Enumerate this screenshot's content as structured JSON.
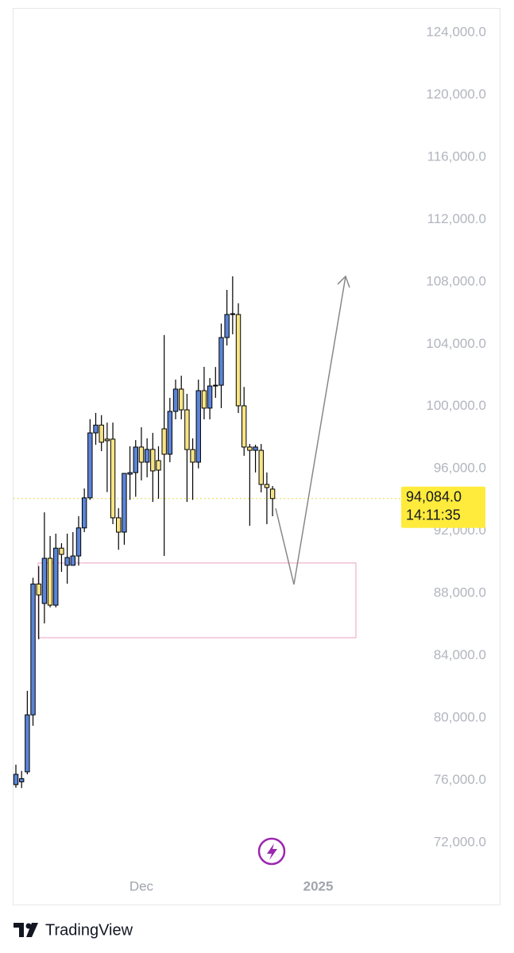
{
  "chart_data": {
    "type": "candlestick",
    "source": "TradingView",
    "categories": [
      null,
      null,
      null,
      null,
      null,
      null,
      null,
      null,
      null,
      null,
      null,
      null,
      null,
      null,
      null,
      null,
      null,
      null,
      null,
      null,
      null,
      null,
      "Dec",
      null,
      null,
      null,
      null,
      null,
      null,
      null,
      null,
      null,
      null,
      null,
      null,
      null,
      null,
      null,
      null,
      null,
      null,
      null,
      null,
      null,
      null,
      null,
      null,
      null,
      null,
      null,
      null,
      null,
      null,
      "2025"
    ],
    "open": [
      75720,
      75900,
      76540,
      80200,
      88600,
      87350,
      90250,
      87240,
      90900,
      89800,
      89800,
      90400,
      92200,
      94130,
      98300,
      98800,
      97900,
      97900,
      92850,
      91930,
      95650,
      95750,
      97390,
      96420,
      97240,
      96520,
      98560,
      96930,
      99680,
      101110,
      99780,
      97230,
      96420,
      101010,
      99890,
      101310,
      101360,
      104420,
      105900,
      105900,
      100040,
      97390,
      97180,
      97180,
      94990,
      94690,
      null,
      null,
      null,
      null,
      null,
      null,
      null,
      null
    ],
    "high": [
      77000,
      76600,
      81740,
      89000,
      89750,
      93200,
      91680,
      91830,
      91220,
      91830,
      91930,
      92950,
      94730,
      99180,
      99580,
      99440,
      98960,
      98960,
      93470,
      95390,
      97440,
      97840,
      98660,
      97950,
      98300,
      97440,
      104580,
      100550,
      101720,
      101970,
      100810,
      97950,
      101720,
      102540,
      101820,
      102530,
      105320,
      107480,
      108350,
      106620,
      101250,
      97590,
      97540,
      97590,
      95760,
      94890,
      null,
      null,
      null,
      null,
      null,
      null,
      null,
      null
    ],
    "low": [
      75520,
      75500,
      76380,
      79500,
      85050,
      86070,
      87100,
      87100,
      89380,
      88620,
      89780,
      89780,
      91930,
      94000,
      97540,
      97130,
      94500,
      92440,
      90800,
      91120,
      94000,
      94200,
      95250,
      95450,
      93870,
      94070,
      90400,
      96420,
      99170,
      99170,
      93870,
      94000,
      96020,
      99170,
      99170,
      100550,
      99890,
      103910,
      104630,
      99580,
      96830,
      92340,
      95760,
      94480,
      92440,
      92950,
      null,
      null,
      null,
      null,
      null,
      null,
      null,
      null
    ],
    "close": [
      76380,
      76100,
      80200,
      88600,
      87900,
      90250,
      87240,
      90900,
      90500,
      90300,
      90400,
      92200,
      94130,
      98300,
      98800,
      97700,
      97800,
      92850,
      91930,
      95700,
      95750,
      97390,
      96420,
      97240,
      95860,
      95910,
      96930,
      99680,
      101110,
      99780,
      97230,
      96420,
      101010,
      99890,
      101310,
      101360,
      104420,
      105900,
      105950,
      100040,
      97390,
      97180,
      97390,
      94990,
      94790,
      94084,
      null,
      null,
      null,
      null,
      null,
      null,
      null,
      null
    ],
    "up_color": "#5b84d6",
    "down_color": "#f7e484",
    "ylim": [
      67970,
      125580
    ],
    "yticks": [
      {
        "value": 72000,
        "label": "72,000.0"
      },
      {
        "value": 76000,
        "label": "76,000.0"
      },
      {
        "value": 80000,
        "label": "80,000.0"
      },
      {
        "value": 84000,
        "label": "84,000.0"
      },
      {
        "value": 88000,
        "label": "88,000.0"
      },
      {
        "value": 92000,
        "label": "92,000.0"
      },
      {
        "value": 96000,
        "label": "96,000.0"
      },
      {
        "value": 100000,
        "label": "100,000.0"
      },
      {
        "value": 104000,
        "label": "104,000.0"
      },
      {
        "value": 108000,
        "label": "108,000.0"
      },
      {
        "value": 112000,
        "label": "112,000.0"
      },
      {
        "value": 116000,
        "label": "116,000.0"
      },
      {
        "value": 120000,
        "label": "120,000.0"
      },
      {
        "value": 124000,
        "label": "124,000.0"
      }
    ],
    "last_price": {
      "value": 94084,
      "label": "94,084.0"
    },
    "countdown": "14:11:35",
    "zone": [
      85150,
      89950
    ],
    "projection": [
      93460,
      88570,
      108350
    ]
  }
}
